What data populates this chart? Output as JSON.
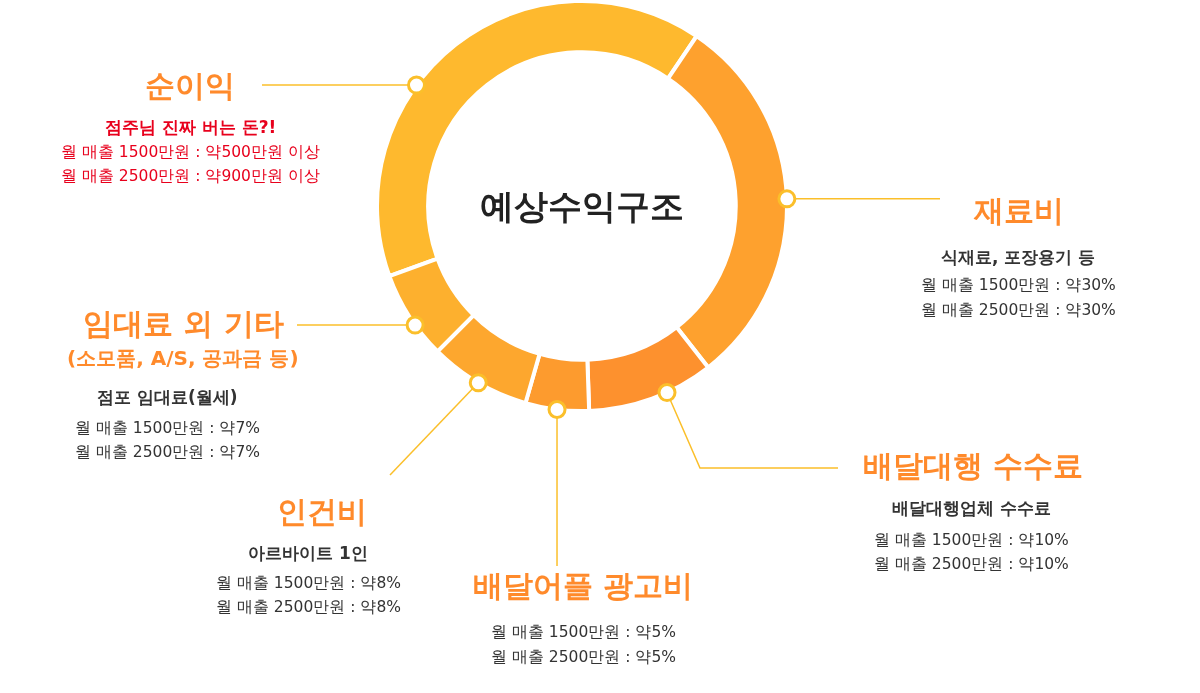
{
  "chart_data": {
    "type": "donut",
    "title": "예상수익구조",
    "categories": [
      "순이익",
      "재료비",
      "배달대행 수수료",
      "배달어플 광고비",
      "인건비",
      "임대료 외 기타\n(소모품, A/S, 공과금 등)"
    ],
    "values": [
      40,
      30,
      10,
      5,
      8,
      7
    ],
    "colors": [
      "#feb92e",
      "#fea12e",
      "#fd912e",
      "#fd9b2e",
      "#fda72e",
      "#fdb02e"
    ],
    "annotations": [
      "점주님 진짜 버는 돈?!\n월 매출 1500만원 : 약500만원 이상\n월 매출 2500만원 : 약900만원 이상",
      "식재료, 포장용기 등\n월 매출 1500만원 : 약30%\n월 매출 2500만원 : 약30%",
      "배달대행업체 수수료\n월 매출 1500만원 : 약10%\n월 매출 2500만원 : 약10%",
      "월 매출 1500만원 : 약5%\n월 매출 2500만원 : 약5%",
      "아르바이트 1인\n월 매출 1500만원 : 약8%\n월 매출 2500만원 : 약8%",
      "점포 임대료(월세)\n월 매출 1500만원 : 약7%\n월 매출 2500만원 : 약7%"
    ]
  }
}
